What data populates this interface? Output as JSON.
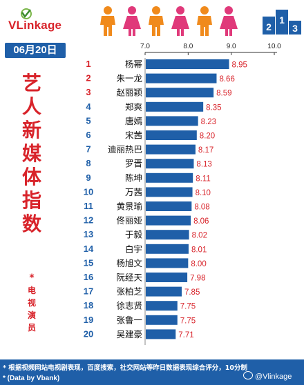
{
  "brand": {
    "logo_text": "VLinkage",
    "podium_digits": [
      "2",
      "1",
      "3"
    ]
  },
  "date": "06月20日",
  "title_chars": [
    "艺",
    "人",
    "新",
    "媒",
    "体",
    "指",
    "数"
  ],
  "subtitle": {
    "star": "*",
    "chars": [
      "电",
      "视",
      "演",
      "员"
    ]
  },
  "footer": {
    "note": "* 根据视频网站电视剧表现，百度搜索，社交网站等昨日数据表现综合评分，10分制",
    "source": "* (Data by Vbank)",
    "weibo": "@Vlinkage"
  },
  "colors": {
    "accent": "#d8232a",
    "bar": "#1f5fa8",
    "person_orange": "#f08a1c",
    "person_pink": "#e0397a"
  },
  "chart_data": {
    "type": "bar",
    "orientation": "horizontal",
    "title": "",
    "xlabel": "",
    "ylabel": "",
    "xlim": [
      7.0,
      10.0
    ],
    "ticks": [
      "7.0",
      "8.0",
      "9.0",
      "10.0"
    ],
    "grid": false,
    "ranks": [
      "1",
      "2",
      "3",
      "4",
      "5",
      "6",
      "7",
      "8",
      "9",
      "10",
      "11",
      "12",
      "13",
      "14",
      "15",
      "16",
      "17",
      "18",
      "19",
      "20"
    ],
    "categories": [
      "杨幂",
      "朱一龙",
      "赵丽颖",
      "郑爽",
      "唐嫣",
      "宋茜",
      "迪丽热巴",
      "罗晋",
      "陈坤",
      "万茜",
      "黄景瑜",
      "佟丽娅",
      "于毅",
      "白宇",
      "杨旭文",
      "阮经天",
      "张柏芝",
      "徐志贤",
      "张鲁一",
      "吴建豪"
    ],
    "values": [
      8.95,
      8.66,
      8.59,
      8.35,
      8.23,
      8.2,
      8.17,
      8.13,
      8.11,
      8.1,
      8.08,
      8.06,
      8.02,
      8.01,
      8.0,
      7.98,
      7.85,
      7.75,
      7.75,
      7.71
    ],
    "value_labels": [
      "8.95",
      "8.66",
      "8.59",
      "8.35",
      "8.23",
      "8.20",
      "8.17",
      "8.13",
      "8.11",
      "8.10",
      "8.08",
      "8.06",
      "8.02",
      "8.01",
      "8.00",
      "7.98",
      "7.85",
      "7.75",
      "7.75",
      "7.71"
    ]
  }
}
